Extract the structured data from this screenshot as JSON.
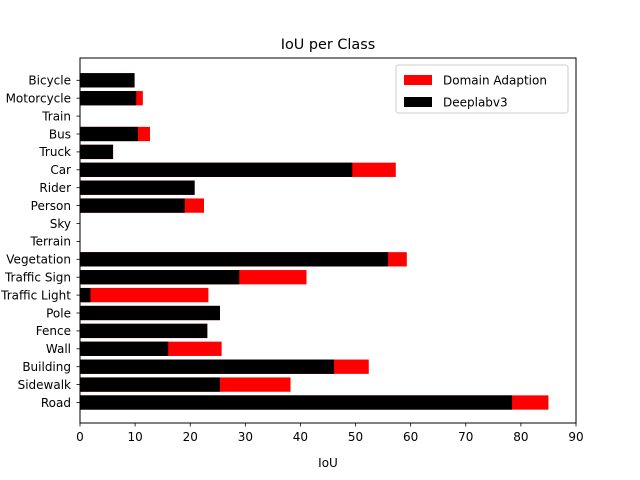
{
  "chart_data": {
    "type": "bar",
    "orientation": "horizontal",
    "stacked_overlay": true,
    "title": "IoU per Class",
    "xlabel": "IoU",
    "ylabel": "",
    "xlim": [
      0,
      90
    ],
    "x_ticks": [
      0,
      10,
      20,
      30,
      40,
      50,
      60,
      70,
      80,
      90
    ],
    "grid": false,
    "legend_position": "top-right",
    "categories": [
      "Road",
      "Sidewalk",
      "Building",
      "Wall",
      "Fence",
      "Pole",
      "Traffic Light",
      "Traffic Sign",
      "Vegetation",
      "Terrain",
      "Sky",
      "Person",
      "Rider",
      "Car",
      "Truck",
      "Bus",
      "Train",
      "Motorcycle",
      "Bicycle"
    ],
    "series": [
      {
        "name": "Domain Adaption",
        "color": "#ff0000",
        "values": [
          85.0,
          38.2,
          52.4,
          25.7,
          23.1,
          25.4,
          23.3,
          41.1,
          59.3,
          0.0,
          0.0,
          22.5,
          20.8,
          57.3,
          6.0,
          12.7,
          0.0,
          11.4,
          9.9
        ]
      },
      {
        "name": "Deeplabv3",
        "color": "#000000",
        "values": [
          78.4,
          25.4,
          46.1,
          16.0,
          23.1,
          25.4,
          1.9,
          28.9,
          55.9,
          0.0,
          0.0,
          19.0,
          20.8,
          49.4,
          6.0,
          10.5,
          0.0,
          10.2,
          9.9
        ]
      }
    ]
  }
}
